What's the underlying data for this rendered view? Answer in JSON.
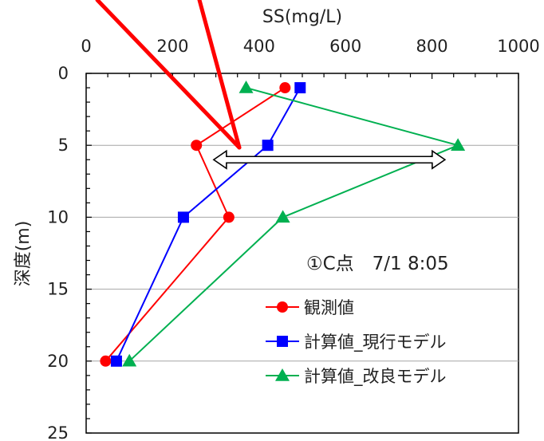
{
  "chart_data": {
    "type": "line",
    "orientation": "depth-profile",
    "xlabel": "SS(mg/L)",
    "ylabel": "深度(m)",
    "x_axis_position": "top",
    "xlim": [
      0,
      1000
    ],
    "ylim": [
      0,
      25
    ],
    "y_inverted": true,
    "xticks": [
      0,
      200,
      400,
      600,
      800,
      1000
    ],
    "yticks": [
      0,
      5,
      10,
      15,
      20,
      25
    ],
    "grid": "horizontal",
    "annotation": "①C点　7/1 8:05",
    "legend_position": "bottom-right",
    "series": [
      {
        "name": "観測値",
        "color": "#ff0000",
        "marker": "circle",
        "points": [
          {
            "ss": 460,
            "depth": 1
          },
          {
            "ss": 255,
            "depth": 5
          },
          {
            "ss": 330,
            "depth": 10
          },
          {
            "ss": 45,
            "depth": 20
          }
        ]
      },
      {
        "name": "計算値_現行モデル",
        "color": "#0000ff",
        "marker": "square",
        "points": [
          {
            "ss": 495,
            "depth": 1
          },
          {
            "ss": 420,
            "depth": 5
          },
          {
            "ss": 225,
            "depth": 10
          },
          {
            "ss": 70,
            "depth": 20
          }
        ]
      },
      {
        "name": "計算値_改良モデル",
        "color": "#00b050",
        "marker": "triangle",
        "points": [
          {
            "ss": 370,
            "depth": 1
          },
          {
            "ss": 860,
            "depth": 5
          },
          {
            "ss": 455,
            "depth": 10
          },
          {
            "ss": 100,
            "depth": 20
          }
        ]
      }
    ],
    "red_callout_lines": "two red lines pointing to the double arrow",
    "double_arrow": {
      "from_ss": 295,
      "to_ss": 830,
      "depth": 6
    }
  }
}
